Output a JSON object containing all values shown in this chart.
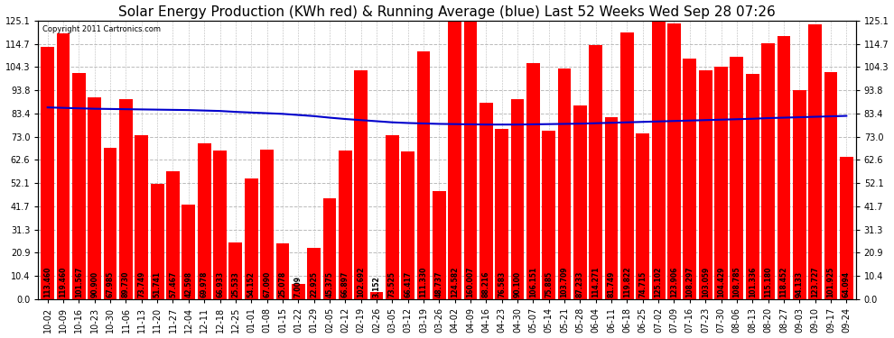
{
  "title": "Solar Energy Production (KWh red) & Running Average (blue) Last 52 Weeks Wed Sep 28 07:26",
  "copyright": "Copyright 2011 Cartronics.com",
  "bar_color": "#ff0000",
  "line_color": "#0000cc",
  "background_color": "#ffffff",
  "plot_bg_color": "#ffffff",
  "grid_color": "#bbbbbb",
  "categories": [
    "10-02",
    "10-09",
    "10-16",
    "10-23",
    "10-30",
    "11-06",
    "11-13",
    "11-20",
    "11-27",
    "12-04",
    "12-11",
    "12-18",
    "12-25",
    "01-01",
    "01-08",
    "01-15",
    "01-22",
    "01-29",
    "02-05",
    "02-12",
    "02-19",
    "02-26",
    "03-05",
    "03-12",
    "03-19",
    "03-26",
    "04-02",
    "04-09",
    "04-16",
    "04-23",
    "04-30",
    "05-07",
    "05-14",
    "05-21",
    "05-28",
    "06-04",
    "06-11",
    "06-18",
    "06-25",
    "07-02",
    "07-09",
    "07-16",
    "07-23",
    "07-30",
    "08-06",
    "08-13",
    "08-20",
    "08-27",
    "09-03",
    "09-10",
    "09-17",
    "09-24"
  ],
  "bar_values": [
    113.46,
    119.46,
    101.567,
    90.9,
    67.985,
    89.73,
    73.749,
    51.741,
    57.467,
    42.598,
    69.978,
    66.933,
    25.533,
    54.152,
    67.09,
    25.078,
    7.009,
    22.925,
    45.375,
    66.897,
    102.692,
    3.152,
    73.525,
    66.417,
    111.33,
    48.737,
    124.582,
    160.007,
    88.216,
    76.583,
    90.1,
    106.151,
    75.885,
    103.709,
    87.233,
    114.271,
    81.749,
    119.822,
    74.715,
    125.102,
    123.906,
    108.297,
    103.059,
    104.429,
    108.785,
    101.336,
    115.18,
    118.452,
    94.133,
    123.727,
    101.925,
    64.094
  ],
  "bar_labels": [
    "113.460",
    "119.460",
    "101.567",
    "90.900",
    "67.985",
    "89.730",
    "73.749",
    "51.741",
    "57.467",
    "42.598",
    "69.978",
    "66.933",
    "25.533",
    "54.152",
    "67.090",
    "25.078",
    "7.009",
    "22.925",
    "45.375",
    "66.897",
    "102.692",
    "3.152",
    "73.525",
    "66.417",
    "111.330",
    "48.737",
    "124.582",
    "160.007",
    "88.216",
    "76.583",
    "90.100",
    "106.151",
    "75.885",
    "103.709",
    "87.233",
    "114.271",
    "81.749",
    "119.822",
    "74.715",
    "125.102",
    "123.906",
    "108.297",
    "103.059",
    "104.429",
    "108.785",
    "101.336",
    "115.180",
    "118.452",
    "94.133",
    "123.727",
    "101.925",
    "64.094"
  ],
  "running_avg": [
    86.2,
    86.0,
    85.8,
    85.6,
    85.5,
    85.4,
    85.3,
    85.2,
    85.1,
    85.0,
    84.8,
    84.6,
    84.2,
    83.9,
    83.6,
    83.3,
    82.8,
    82.3,
    81.6,
    81.0,
    80.5,
    80.0,
    79.5,
    79.2,
    79.0,
    78.8,
    78.7,
    78.6,
    78.5,
    78.5,
    78.5,
    78.6,
    78.7,
    78.8,
    78.9,
    79.1,
    79.3,
    79.5,
    79.7,
    79.9,
    80.1,
    80.3,
    80.5,
    80.7,
    80.9,
    81.1,
    81.4,
    81.6,
    81.8,
    82.0,
    82.2,
    82.4
  ],
  "yticks": [
    0.0,
    10.4,
    20.9,
    31.3,
    41.7,
    52.1,
    62.6,
    73.0,
    83.4,
    93.8,
    104.3,
    114.7,
    125.1
  ],
  "ylim": [
    0,
    125.1
  ],
  "title_fontsize": 11,
  "tick_fontsize": 7,
  "label_fontsize": 5.5
}
